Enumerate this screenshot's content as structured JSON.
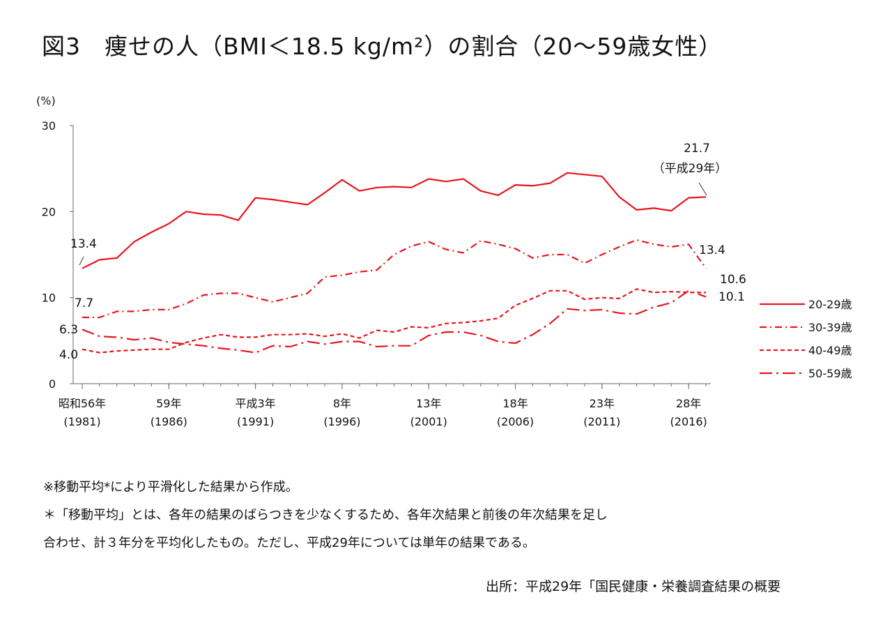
{
  "title": "図3　痩せの人（BMI＜18.5 kg/m²）の割合（20～59歳女性）",
  "notes": [
    "※移動平均*により平滑化した結果から作成。",
    "＊「移動平均」とは、各年の結果のばらつきを少なくするため、各年次結果と前後の年次結果を足し",
    "合わせ、計３年分を平均化したもの。ただし、平成29年については単年の結果である。"
  ],
  "source": "出所：平成29年「国民健康・栄養調査結果の概要",
  "chart_data": {
    "type": "line",
    "ylabel": "(%)",
    "ylim": [
      0,
      30
    ],
    "yticks": [
      "0",
      "10",
      "20",
      "30"
    ],
    "x": [
      1981,
      1982,
      1983,
      1984,
      1985,
      1986,
      1987,
      1988,
      1989,
      1990,
      1991,
      1992,
      1993,
      1994,
      1995,
      1996,
      1997,
      1998,
      1999,
      2000,
      2001,
      2002,
      2003,
      2004,
      2005,
      2006,
      2007,
      2008,
      2009,
      2010,
      2011,
      2012,
      2013,
      2014,
      2015,
      2016,
      2017
    ],
    "xticks": [
      {
        "x": 1981,
        "label": "昭和56年",
        "sub": "(1981)"
      },
      {
        "x": 1986,
        "label": "59年",
        "sub": "(1986)"
      },
      {
        "x": 1991,
        "label": "平成3年",
        "sub": "(1991)"
      },
      {
        "x": 1996,
        "label": "8年",
        "sub": "(1996)"
      },
      {
        "x": 2001,
        "label": "13年",
        "sub": "(2001)"
      },
      {
        "x": 2006,
        "label": "18年",
        "sub": "(2006)"
      },
      {
        "x": 2011,
        "label": "23年",
        "sub": "(2011)"
      },
      {
        "x": 2016,
        "label": "28年",
        "sub": "(2016)"
      }
    ],
    "series": [
      {
        "name": "20-29歳",
        "dash": "none",
        "color": "#e8141d",
        "values": [
          13.4,
          14.4,
          14.6,
          16.5,
          17.6,
          18.6,
          20.0,
          19.7,
          19.6,
          19.0,
          21.6,
          21.4,
          21.1,
          20.8,
          22.2,
          23.7,
          22.4,
          22.8,
          22.9,
          22.8,
          23.8,
          23.5,
          23.8,
          22.4,
          21.9,
          23.1,
          23.0,
          23.3,
          24.5,
          24.3,
          24.1,
          21.7,
          20.2,
          20.4,
          20.1,
          21.6,
          21.7
        ]
      },
      {
        "name": "30-39歳",
        "dash": "dashdot",
        "color": "#e8141d",
        "values": [
          7.7,
          7.7,
          8.4,
          8.4,
          8.6,
          8.6,
          9.3,
          10.3,
          10.5,
          10.5,
          10.0,
          9.5,
          10.0,
          10.5,
          12.4,
          12.6,
          13.0,
          13.2,
          15.0,
          16.0,
          16.5,
          15.6,
          15.2,
          16.6,
          16.2,
          15.7,
          14.6,
          15.0,
          15.0,
          14.0,
          15.0,
          15.9,
          16.7,
          16.2,
          15.9,
          16.2,
          13.4
        ]
      },
      {
        "name": "40-49歳",
        "dash": "dashed",
        "color": "#e8141d",
        "values": [
          4.0,
          3.6,
          3.8,
          3.9,
          4.0,
          4.0,
          4.8,
          5.3,
          5.7,
          5.4,
          5.4,
          5.7,
          5.7,
          5.8,
          5.5,
          5.8,
          5.3,
          6.2,
          6.0,
          6.6,
          6.5,
          7.0,
          7.1,
          7.3,
          7.6,
          9.1,
          9.9,
          10.8,
          10.8,
          9.8,
          10.0,
          9.9,
          11.0,
          10.6,
          10.7,
          10.6,
          10.6
        ]
      },
      {
        "name": "50-59歳",
        "dash": "longdashdot",
        "color": "#e8141d",
        "values": [
          6.3,
          5.5,
          5.4,
          5.1,
          5.3,
          4.8,
          4.6,
          4.4,
          4.1,
          3.9,
          3.6,
          4.4,
          4.3,
          4.9,
          4.6,
          4.9,
          4.9,
          4.3,
          4.4,
          4.4,
          5.6,
          6.0,
          6.0,
          5.6,
          4.9,
          4.7,
          5.7,
          7.0,
          8.7,
          8.5,
          8.6,
          8.2,
          8.1,
          8.9,
          9.4,
          10.8,
          10.1
        ]
      }
    ],
    "annotations": [
      {
        "series": 0,
        "x": 1981,
        "text": "13.4"
      },
      {
        "series": 0,
        "x": 2017,
        "text": "21.7"
      },
      {
        "series": 0,
        "x": 2017,
        "text": "（平成29年）"
      },
      {
        "series": 1,
        "x": 1981,
        "text": "7.7"
      },
      {
        "series": 1,
        "x": 2017,
        "text": "13.4"
      },
      {
        "series": 2,
        "x": 1981,
        "text": "4.0"
      },
      {
        "series": 2,
        "x": 2017,
        "text": "10.6"
      },
      {
        "series": 3,
        "x": 1981,
        "text": "6.3"
      },
      {
        "series": 3,
        "x": 2017,
        "text": "10.1"
      }
    ],
    "legend_position": "right",
    "grid": false
  }
}
